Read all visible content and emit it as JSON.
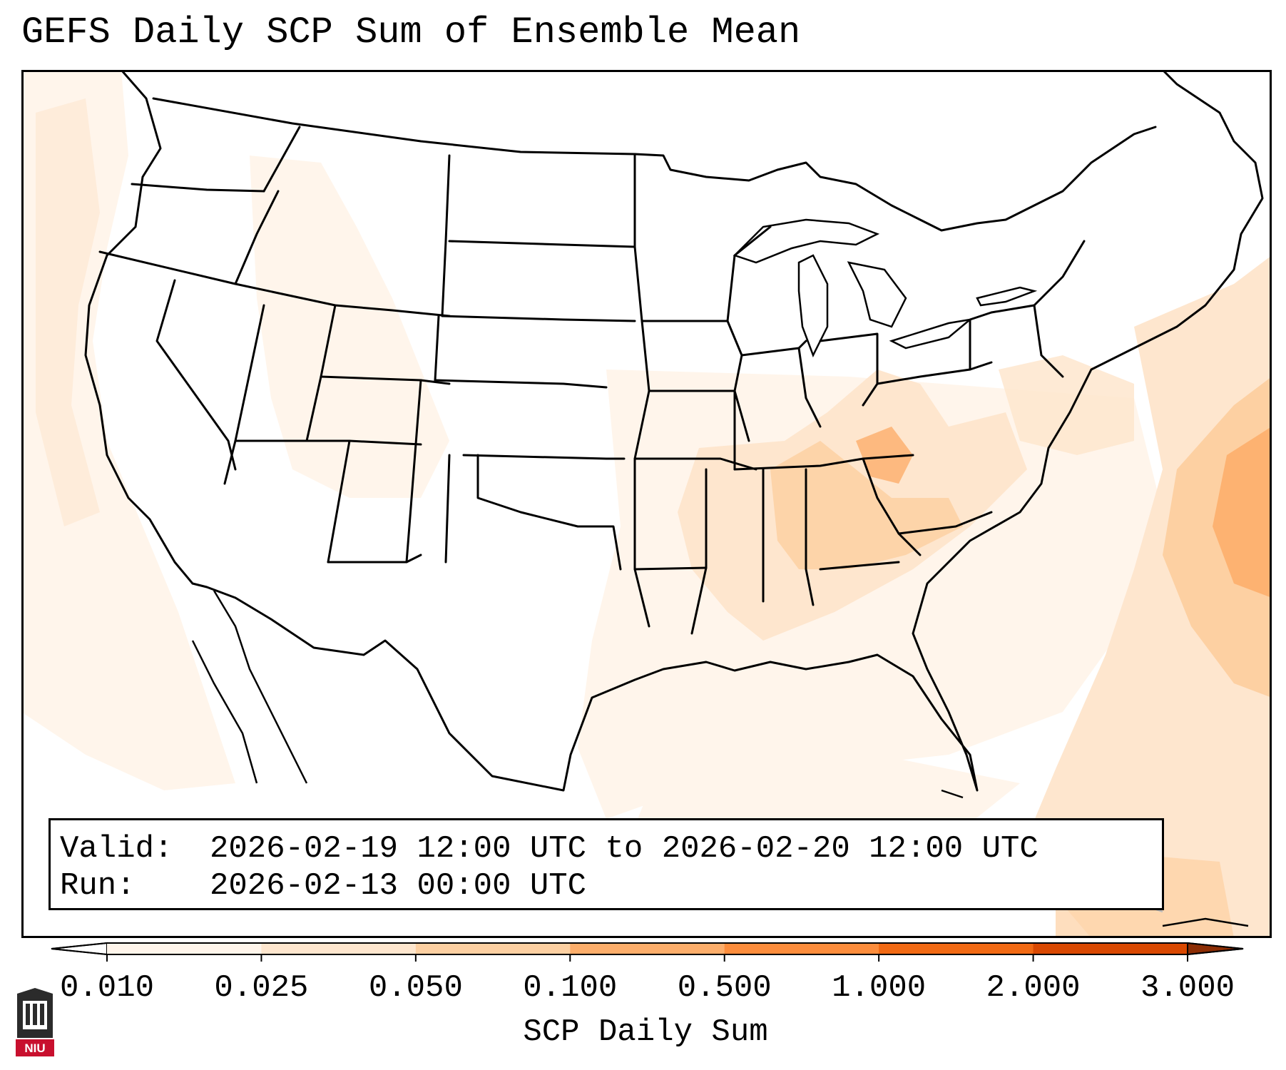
{
  "title": "GEFS Daily SCP Sum of Ensemble Mean",
  "info": {
    "valid_label": "Valid:",
    "valid_value": "2026-02-19 12:00 UTC to 2026-02-20 12:00 UTC",
    "run_label": "Run:",
    "run_value": "2026-02-13 00:00 UTC"
  },
  "colorbar": {
    "label": "SCP Daily Sum",
    "ticks": [
      "0.010",
      "0.025",
      "0.050",
      "0.100",
      "0.500",
      "1.000",
      "2.000",
      "3.000"
    ],
    "colors": [
      "#fff5eb",
      "#fee6ce",
      "#fdd0a2",
      "#fdae6b",
      "#fd8d3c",
      "#f16913",
      "#d94801"
    ],
    "under_color": "#ffffff",
    "over_color": "#8c2d04",
    "extend": "both"
  },
  "logo": {
    "text": "NIU",
    "colors": {
      "shield": "#2b2b2b",
      "banner": "#c8102e"
    }
  }
}
